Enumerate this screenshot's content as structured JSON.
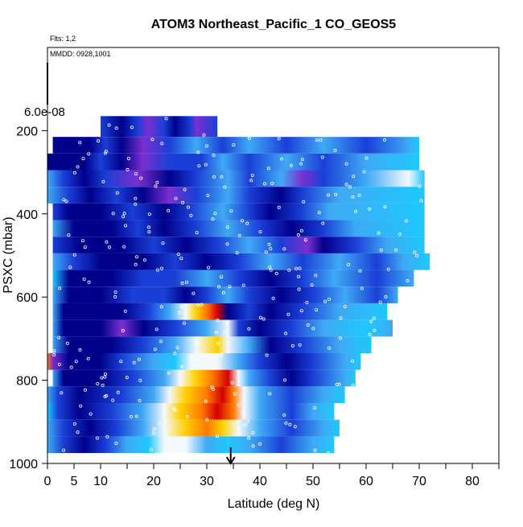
{
  "chart_data": {
    "type": "heatmap",
    "title": "ATOM3 Northeast_Pacific_1 CO_GEOS5",
    "annotations": {
      "flights": "Flts: 1,2",
      "dates": "MMDD: 0928,1001",
      "scale_label": "6.0e-08"
    },
    "xlabel": "Latitude (deg N)",
    "ylabel": "PSXC (mbar)",
    "xlim": [
      0,
      85
    ],
    "ylim": [
      1000,
      0
    ],
    "y_reversed": true,
    "x_ticks": [
      0,
      5,
      10,
      20,
      30,
      40,
      50,
      60,
      70,
      80
    ],
    "x_tick_labels": [
      "0",
      "5",
      "10",
      "20",
      "30",
      "40",
      "50",
      "60",
      "70",
      "80"
    ],
    "x_minor_ticks": [
      15,
      25,
      35,
      45,
      55,
      65,
      75,
      85
    ],
    "y_ticks": [
      200,
      400,
      600,
      800,
      1000
    ],
    "y_tick_labels": [
      "200",
      "400",
      "600",
      "800",
      "1000"
    ],
    "marker_arrow_x": 34.5,
    "colors": {
      "dark_blue": "#00008b",
      "blue": "#1a3fd6",
      "light_blue": "#3fa9f5",
      "cyan": "#1ec8ff",
      "purple": "#7a2fd0",
      "white": "#f4f8ff",
      "yellow": "#ffd000",
      "orange": "#ff7a00",
      "red": "#d40000"
    },
    "bands": [
      {
        "p_top": 165,
        "p_bot": 215,
        "stops": [
          [
            10,
            "blue"
          ],
          [
            14,
            "dark_blue"
          ],
          [
            17,
            "blue"
          ],
          [
            19,
            "purple"
          ],
          [
            22,
            "blue"
          ],
          [
            24,
            "dark_blue"
          ],
          [
            27,
            "blue"
          ],
          [
            28,
            "purple"
          ],
          [
            32,
            "blue"
          ]
        ]
      },
      {
        "p_top": 215,
        "p_bot": 255,
        "stops": [
          [
            1,
            "dark_blue"
          ],
          [
            8,
            "dark_blue"
          ],
          [
            11,
            "blue"
          ],
          [
            14,
            "dark_blue"
          ],
          [
            18,
            "purple"
          ],
          [
            23,
            "blue"
          ],
          [
            28,
            "light_blue"
          ],
          [
            33,
            "blue"
          ],
          [
            38,
            "light_blue"
          ],
          [
            45,
            "blue"
          ],
          [
            52,
            "light_blue"
          ],
          [
            60,
            "blue"
          ],
          [
            68,
            "light_blue"
          ],
          [
            70,
            "cyan"
          ]
        ]
      },
      {
        "p_top": 255,
        "p_bot": 295,
        "stops": [
          [
            0,
            "dark_blue"
          ],
          [
            7,
            "dark_blue"
          ],
          [
            10,
            "blue"
          ],
          [
            14,
            "dark_blue"
          ],
          [
            18,
            "purple"
          ],
          [
            23,
            "blue"
          ],
          [
            29,
            "blue"
          ],
          [
            33,
            "light_blue"
          ],
          [
            38,
            "blue"
          ],
          [
            45,
            "light_blue"
          ],
          [
            52,
            "blue"
          ],
          [
            60,
            "light_blue"
          ],
          [
            70,
            "cyan"
          ]
        ]
      },
      {
        "p_top": 295,
        "p_bot": 335,
        "stops": [
          [
            0,
            "light_blue"
          ],
          [
            3,
            "blue"
          ],
          [
            7,
            "dark_blue"
          ],
          [
            11,
            "blue"
          ],
          [
            17,
            "purple"
          ],
          [
            23,
            "dark_blue"
          ],
          [
            28,
            "blue"
          ],
          [
            34,
            "light_blue"
          ],
          [
            38,
            "blue"
          ],
          [
            44,
            "light_blue"
          ],
          [
            48,
            "purple"
          ],
          [
            52,
            "blue"
          ],
          [
            60,
            "light_blue"
          ],
          [
            68,
            "white"
          ],
          [
            71,
            "cyan"
          ]
        ]
      },
      {
        "p_top": 335,
        "p_bot": 375,
        "stops": [
          [
            0,
            "light_blue"
          ],
          [
            4,
            "blue"
          ],
          [
            8,
            "dark_blue"
          ],
          [
            13,
            "blue"
          ],
          [
            18,
            "dark_blue"
          ],
          [
            23,
            "purple"
          ],
          [
            28,
            "blue"
          ],
          [
            34,
            "light_blue"
          ],
          [
            38,
            "blue"
          ],
          [
            44,
            "dark_blue"
          ],
          [
            48,
            "blue"
          ],
          [
            55,
            "light_blue"
          ],
          [
            71,
            "cyan"
          ]
        ]
      },
      {
        "p_top": 375,
        "p_bot": 415,
        "stops": [
          [
            1,
            "blue"
          ],
          [
            4,
            "dark_blue"
          ],
          [
            10,
            "dark_blue"
          ],
          [
            16,
            "blue"
          ],
          [
            22,
            "dark_blue"
          ],
          [
            27,
            "blue"
          ],
          [
            33,
            "light_blue"
          ],
          [
            38,
            "blue"
          ],
          [
            42,
            "dark_blue"
          ],
          [
            48,
            "blue"
          ],
          [
            53,
            "light_blue"
          ],
          [
            71,
            "cyan"
          ]
        ]
      },
      {
        "p_top": 415,
        "p_bot": 455,
        "stops": [
          [
            1,
            "light_blue"
          ],
          [
            5,
            "dark_blue"
          ],
          [
            12,
            "dark_blue"
          ],
          [
            17,
            "blue"
          ],
          [
            22,
            "dark_blue"
          ],
          [
            28,
            "blue"
          ],
          [
            34,
            "light_blue"
          ],
          [
            40,
            "blue"
          ],
          [
            46,
            "dark_blue"
          ],
          [
            52,
            "blue"
          ],
          [
            58,
            "light_blue"
          ],
          [
            71,
            "cyan"
          ]
        ]
      },
      {
        "p_top": 455,
        "p_bot": 495,
        "stops": [
          [
            1,
            "blue"
          ],
          [
            6,
            "dark_blue"
          ],
          [
            14,
            "dark_blue"
          ],
          [
            20,
            "blue"
          ],
          [
            26,
            "dark_blue"
          ],
          [
            32,
            "blue"
          ],
          [
            38,
            "light_blue"
          ],
          [
            44,
            "blue"
          ],
          [
            49,
            "purple"
          ],
          [
            52,
            "dark_blue"
          ],
          [
            58,
            "blue"
          ],
          [
            64,
            "light_blue"
          ],
          [
            71,
            "cyan"
          ]
        ]
      },
      {
        "p_top": 495,
        "p_bot": 535,
        "stops": [
          [
            1,
            "light_blue"
          ],
          [
            5,
            "blue"
          ],
          [
            10,
            "dark_blue"
          ],
          [
            18,
            "dark_blue"
          ],
          [
            24,
            "blue"
          ],
          [
            30,
            "dark_blue"
          ],
          [
            36,
            "blue"
          ],
          [
            42,
            "light_blue"
          ],
          [
            48,
            "blue"
          ],
          [
            55,
            "light_blue"
          ],
          [
            62,
            "blue"
          ],
          [
            67,
            "light_blue"
          ],
          [
            72,
            "cyan"
          ]
        ]
      },
      {
        "p_top": 535,
        "p_bot": 575,
        "stops": [
          [
            1,
            "cyan"
          ],
          [
            4,
            "dark_blue"
          ],
          [
            12,
            "dark_blue"
          ],
          [
            18,
            "blue"
          ],
          [
            24,
            "blue"
          ],
          [
            30,
            "light_blue"
          ],
          [
            36,
            "blue"
          ],
          [
            42,
            "dark_blue"
          ],
          [
            48,
            "blue"
          ],
          [
            54,
            "light_blue"
          ],
          [
            62,
            "blue"
          ],
          [
            69,
            "light_blue"
          ]
        ]
      },
      {
        "p_top": 575,
        "p_bot": 615,
        "stops": [
          [
            1,
            "light_blue"
          ],
          [
            4,
            "dark_blue"
          ],
          [
            10,
            "dark_blue"
          ],
          [
            16,
            "blue"
          ],
          [
            22,
            "blue"
          ],
          [
            26,
            "dark_blue"
          ],
          [
            30,
            "blue"
          ],
          [
            34,
            "light_blue"
          ],
          [
            38,
            "blue"
          ],
          [
            44,
            "dark_blue"
          ],
          [
            50,
            "blue"
          ],
          [
            56,
            "light_blue"
          ],
          [
            62,
            "blue"
          ],
          [
            66,
            "light_blue"
          ]
        ]
      },
      {
        "p_top": 615,
        "p_bot": 655,
        "stops": [
          [
            1,
            "light_blue"
          ],
          [
            3,
            "dark_blue"
          ],
          [
            14,
            "dark_blue"
          ],
          [
            19,
            "blue"
          ],
          [
            23,
            "light_blue"
          ],
          [
            26,
            "white"
          ],
          [
            28,
            "yellow"
          ],
          [
            30,
            "orange"
          ],
          [
            32,
            "red"
          ],
          [
            34,
            "dark_blue"
          ],
          [
            38,
            "blue"
          ],
          [
            42,
            "dark_blue"
          ],
          [
            48,
            "blue"
          ],
          [
            55,
            "light_blue"
          ],
          [
            64,
            "cyan"
          ]
        ]
      },
      {
        "p_top": 655,
        "p_bot": 695,
        "stops": [
          [
            1,
            "light_blue"
          ],
          [
            3,
            "dark_blue"
          ],
          [
            10,
            "dark_blue"
          ],
          [
            14,
            "purple"
          ],
          [
            18,
            "dark_blue"
          ],
          [
            24,
            "blue"
          ],
          [
            30,
            "light_blue"
          ],
          [
            34,
            "white"
          ],
          [
            36,
            "blue"
          ],
          [
            40,
            "dark_blue"
          ],
          [
            46,
            "blue"
          ],
          [
            52,
            "light_blue"
          ],
          [
            60,
            "cyan"
          ],
          [
            65,
            "light_blue"
          ]
        ]
      },
      {
        "p_top": 695,
        "p_bot": 735,
        "stops": [
          [
            1,
            "light_blue"
          ],
          [
            4,
            "dark_blue"
          ],
          [
            12,
            "dark_blue"
          ],
          [
            18,
            "blue"
          ],
          [
            24,
            "light_blue"
          ],
          [
            28,
            "white"
          ],
          [
            32,
            "yellow"
          ],
          [
            34,
            "white"
          ],
          [
            38,
            "light_blue"
          ],
          [
            42,
            "dark_blue"
          ],
          [
            48,
            "blue"
          ],
          [
            55,
            "light_blue"
          ],
          [
            61,
            "cyan"
          ]
        ]
      },
      {
        "p_top": 735,
        "p_bot": 775,
        "stops": [
          [
            0,
            "orange"
          ],
          [
            1,
            "purple"
          ],
          [
            4,
            "dark_blue"
          ],
          [
            10,
            "dark_blue"
          ],
          [
            14,
            "blue"
          ],
          [
            20,
            "light_blue"
          ],
          [
            24,
            "cyan"
          ],
          [
            27,
            "white"
          ],
          [
            32,
            "white"
          ],
          [
            36,
            "light_blue"
          ],
          [
            40,
            "blue"
          ],
          [
            45,
            "dark_blue"
          ],
          [
            50,
            "blue"
          ],
          [
            56,
            "light_blue"
          ],
          [
            59,
            "cyan"
          ]
        ]
      },
      {
        "p_top": 775,
        "p_bot": 815,
        "stops": [
          [
            1,
            "light_blue"
          ],
          [
            3,
            "dark_blue"
          ],
          [
            10,
            "dark_blue"
          ],
          [
            16,
            "blue"
          ],
          [
            22,
            "light_blue"
          ],
          [
            25,
            "white"
          ],
          [
            28,
            "yellow"
          ],
          [
            31,
            "orange"
          ],
          [
            34,
            "red"
          ],
          [
            36,
            "white"
          ],
          [
            38,
            "light_blue"
          ],
          [
            42,
            "blue"
          ],
          [
            46,
            "dark_blue"
          ],
          [
            50,
            "blue"
          ],
          [
            56,
            "light_blue"
          ],
          [
            58,
            "cyan"
          ]
        ]
      },
      {
        "p_top": 815,
        "p_bot": 855,
        "stops": [
          [
            0,
            "light_blue"
          ],
          [
            2,
            "blue"
          ],
          [
            6,
            "dark_blue"
          ],
          [
            14,
            "blue"
          ],
          [
            20,
            "light_blue"
          ],
          [
            23,
            "white"
          ],
          [
            26,
            "yellow"
          ],
          [
            30,
            "orange"
          ],
          [
            33,
            "red"
          ],
          [
            35,
            "orange"
          ],
          [
            37,
            "white"
          ],
          [
            40,
            "light_blue"
          ],
          [
            46,
            "blue"
          ],
          [
            52,
            "light_blue"
          ],
          [
            56,
            "cyan"
          ]
        ]
      },
      {
        "p_top": 855,
        "p_bot": 895,
        "stops": [
          [
            0,
            "cyan"
          ],
          [
            2,
            "blue"
          ],
          [
            6,
            "dark_blue"
          ],
          [
            12,
            "blue"
          ],
          [
            18,
            "light_blue"
          ],
          [
            22,
            "white"
          ],
          [
            25,
            "yellow"
          ],
          [
            29,
            "orange"
          ],
          [
            32,
            "red"
          ],
          [
            35,
            "orange"
          ],
          [
            37,
            "white"
          ],
          [
            40,
            "light_blue"
          ],
          [
            46,
            "blue"
          ],
          [
            50,
            "light_blue"
          ],
          [
            54,
            "cyan"
          ]
        ]
      },
      {
        "p_top": 895,
        "p_bot": 935,
        "stops": [
          [
            0,
            "light_blue"
          ],
          [
            3,
            "blue"
          ],
          [
            8,
            "dark_blue"
          ],
          [
            13,
            "blue"
          ],
          [
            18,
            "light_blue"
          ],
          [
            22,
            "white"
          ],
          [
            26,
            "yellow"
          ],
          [
            30,
            "orange"
          ],
          [
            33,
            "yellow"
          ],
          [
            36,
            "white"
          ],
          [
            40,
            "light_blue"
          ],
          [
            46,
            "blue"
          ],
          [
            52,
            "light_blue"
          ],
          [
            55,
            "cyan"
          ]
        ]
      },
      {
        "p_top": 935,
        "p_bot": 975,
        "stops": [
          [
            0,
            "light_blue"
          ],
          [
            3,
            "blue"
          ],
          [
            7,
            "dark_blue"
          ],
          [
            11,
            "blue"
          ],
          [
            15,
            "light_blue"
          ],
          [
            19,
            "cyan"
          ],
          [
            22,
            "white"
          ],
          [
            26,
            "white"
          ],
          [
            30,
            "light_blue"
          ],
          [
            34,
            "cyan"
          ],
          [
            38,
            "light_blue"
          ],
          [
            44,
            "blue"
          ],
          [
            50,
            "light_blue"
          ],
          [
            54,
            "cyan"
          ]
        ]
      }
    ]
  }
}
